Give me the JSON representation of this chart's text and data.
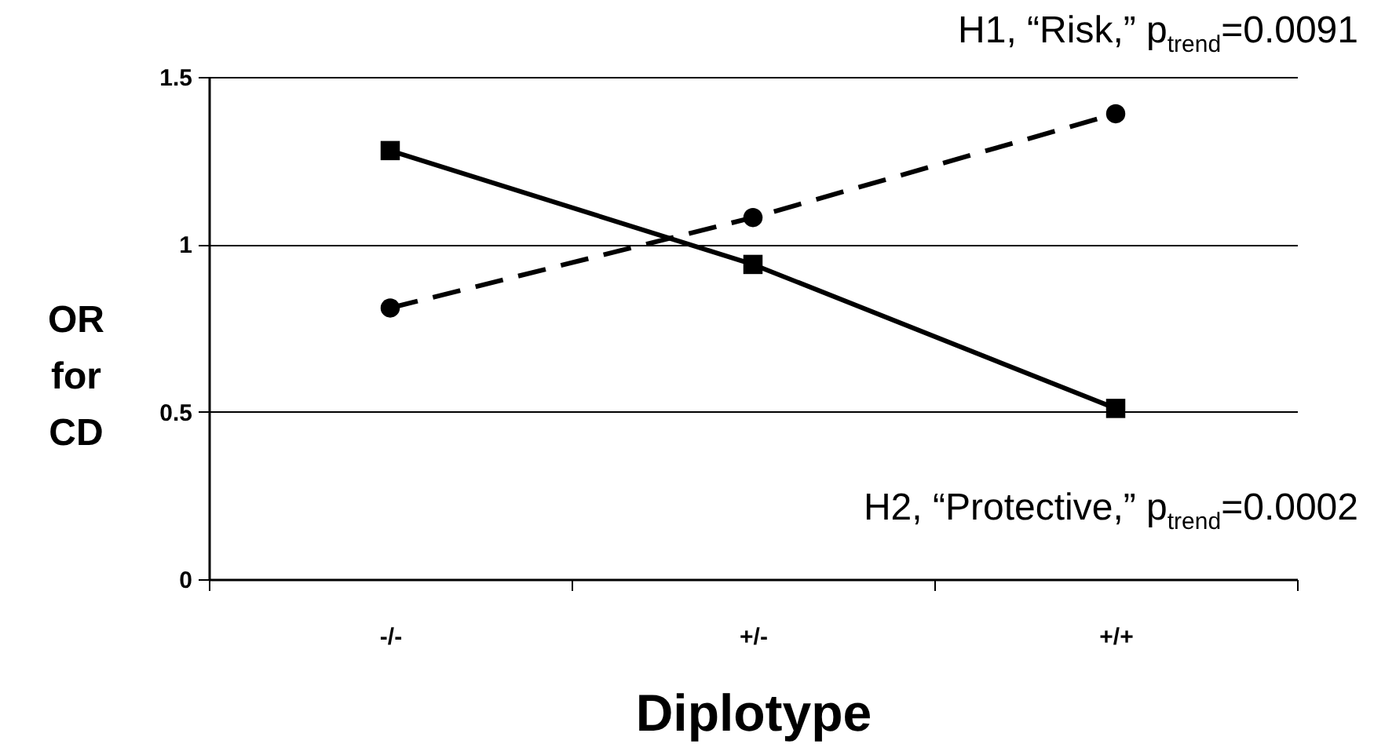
{
  "chart_data": {
    "type": "line",
    "xlabel": "Diplotype",
    "ylabel": "OR for CD",
    "categories": [
      "-/-",
      "+/-",
      "+/+"
    ],
    "series": [
      {
        "color": "#000000",
        "marker": "square",
        "line_style": "solid",
        "values": [
          1.28,
          0.94,
          0.51
        ]
      },
      {
        "color": "#000000",
        "marker": "circle",
        "line_style": "dashed",
        "values": [
          0.81,
          1.08,
          1.39
        ]
      }
    ],
    "ylim": [
      0,
      1.5
    ],
    "yticks": [
      0,
      0.5,
      1,
      1.5
    ],
    "grid": "y",
    "annotations": [
      "H1, “Risk,” p$_{trend}$=0.0091",
      "H2, “Protective,” p$_{trend}$=0.0002"
    ]
  }
}
